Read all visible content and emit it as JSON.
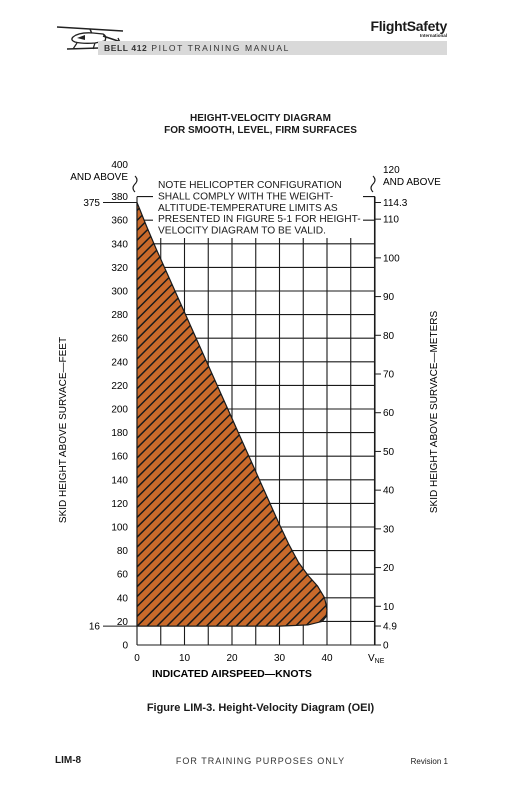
{
  "header": {
    "brand": "FlightSafety",
    "brand_sub": "International",
    "manual_model": "BELL 412",
    "manual_title": "PILOT TRAINING MANUAL"
  },
  "chart_data": {
    "type": "area",
    "title": "HEIGHT-VELOCITY DIAGRAM",
    "subtitle": "FOR SMOOTH, LEVEL, FIRM SURFACES",
    "xlabel": "INDICATED AIRSPEED—KNOTS",
    "ylabel": "SKID HEIGHT ABOVE SURVACE—FEET",
    "y2label": "SKID HEIGHT ABOVE SURVACE—METERS",
    "xlim": [
      0,
      40
    ],
    "ylim": [
      0,
      400
    ],
    "grid": true,
    "x_ticks": [
      0,
      10,
      20,
      30,
      40
    ],
    "vne_label": "V",
    "vne_sub": "NE",
    "y_ticks": [
      0,
      20,
      40,
      60,
      80,
      100,
      120,
      140,
      160,
      180,
      200,
      220,
      240,
      260,
      280,
      300,
      320,
      340,
      360,
      380
    ],
    "y_top_label_1": "400",
    "y_top_label_2": "AND ABOVE",
    "y_left_marks": [
      {
        "value": 375,
        "label": "375"
      },
      {
        "value": 16,
        "label": "16"
      }
    ],
    "y2_ticks": [
      {
        "m": 0,
        "label": "0"
      },
      {
        "m": 4.9,
        "label": "4.9"
      },
      {
        "m": 10,
        "label": "10"
      },
      {
        "m": 20,
        "label": "20"
      },
      {
        "m": 30,
        "label": "30"
      },
      {
        "m": 40,
        "label": "40"
      },
      {
        "m": 50,
        "label": "50"
      },
      {
        "m": 60,
        "label": "60"
      },
      {
        "m": 70,
        "label": "70"
      },
      {
        "m": 80,
        "label": "80"
      },
      {
        "m": 90,
        "label": "90"
      },
      {
        "m": 100,
        "label": "100"
      },
      {
        "m": 110,
        "label": "110"
      },
      {
        "m": 114.3,
        "label": "114.3"
      }
    ],
    "y2_top_label_1": "120",
    "y2_top_label_2": "AND ABOVE",
    "note": [
      "NOTE HELICOPTER CONFIGURATION",
      "SHALL COMPLY WITH THE WEIGHT-",
      "ALTITUDE-TEMPERATURE LIMITS AS",
      "PRESENTED IN FIGURE 5-1 FOR HEIGHT-",
      "VELOCITY DIAGRAM TO BE VALID."
    ],
    "avoid_region": [
      [
        0,
        375
      ],
      [
        0.5,
        370
      ],
      [
        2,
        355
      ],
      [
        4,
        336
      ],
      [
        6,
        318
      ],
      [
        8,
        300
      ],
      [
        10,
        282
      ],
      [
        12,
        264
      ],
      [
        14,
        246
      ],
      [
        16,
        228
      ],
      [
        18,
        210
      ],
      [
        20,
        192
      ],
      [
        22,
        174
      ],
      [
        24,
        156
      ],
      [
        26,
        138
      ],
      [
        28,
        120
      ],
      [
        30,
        102
      ],
      [
        32,
        85
      ],
      [
        34,
        70
      ],
      [
        36,
        59
      ],
      [
        38,
        50
      ],
      [
        39.5,
        40
      ],
      [
        40,
        30
      ],
      [
        39.8,
        24
      ],
      [
        39,
        20
      ],
      [
        36,
        17
      ],
      [
        30,
        16
      ],
      [
        0,
        16
      ]
    ],
    "region_fill": "#c96a2b",
    "hatch_color": "#1a1a1a"
  },
  "caption": "Figure LIM-3.   Height-Velocity Diagram (OEI)",
  "footer": {
    "page": "LIM-8",
    "center": "FOR TRAINING PURPOSES ONLY",
    "revision": "Revision 1"
  }
}
